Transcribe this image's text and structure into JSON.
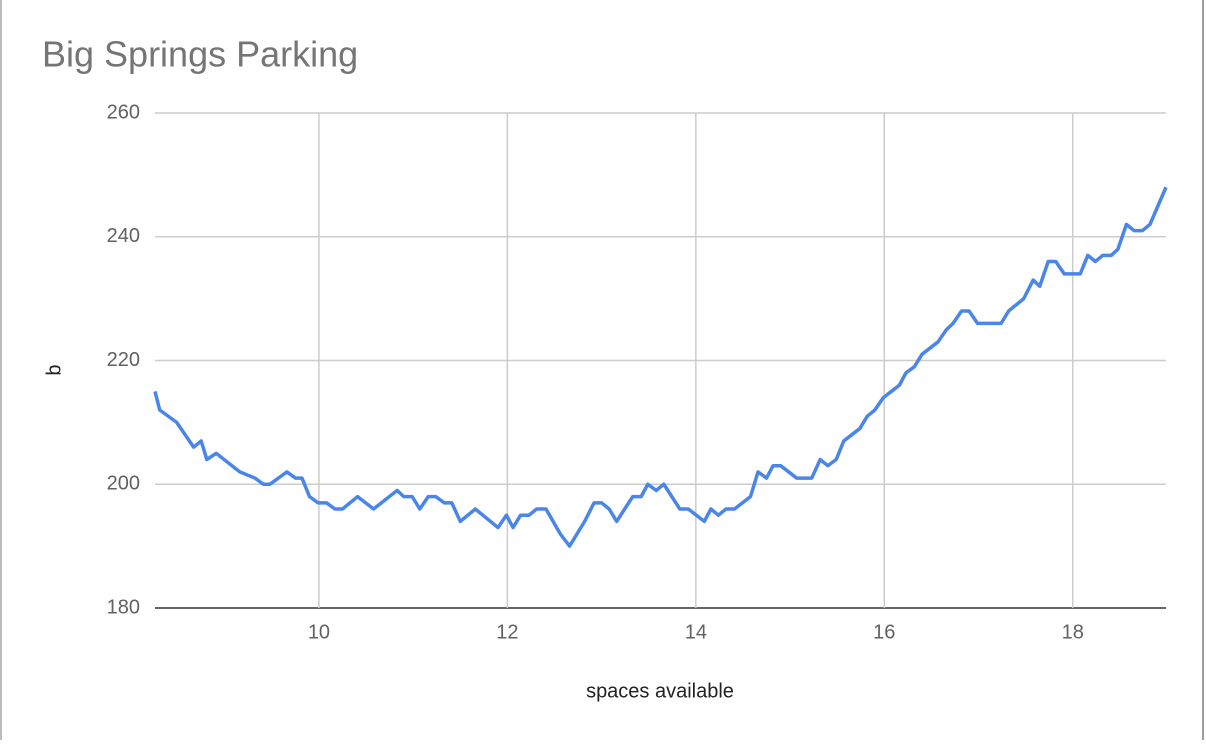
{
  "chart_data": {
    "type": "line",
    "title": "Big Springs Parking",
    "x_label": "spaces available",
    "y_label": "b",
    "x": [
      8.26,
      8.31,
      8.49,
      8.67,
      8.75,
      8.81,
      8.91,
      9.16,
      9.32,
      9.41,
      9.48,
      9.66,
      9.75,
      9.82,
      9.9,
      9.99,
      10.08,
      10.17,
      10.25,
      10.41,
      10.58,
      10.83,
      10.9,
      10.99,
      11.07,
      11.16,
      11.24,
      11.33,
      11.41,
      11.5,
      11.66,
      11.9,
      11.99,
      12.06,
      12.14,
      12.23,
      12.31,
      12.41,
      12.56,
      12.66,
      12.82,
      12.92,
      13.0,
      13.08,
      13.16,
      13.33,
      13.42,
      13.49,
      13.58,
      13.66,
      13.83,
      13.92,
      14.09,
      14.16,
      14.24,
      14.32,
      14.41,
      14.58,
      14.66,
      14.75,
      14.82,
      14.9,
      15.07,
      15.23,
      15.32,
      15.4,
      15.49,
      15.57,
      15.74,
      15.82,
      15.9,
      15.99,
      16.16,
      16.23,
      16.32,
      16.4,
      16.57,
      16.66,
      16.73,
      16.82,
      16.9,
      16.99,
      17.07,
      17.24,
      17.32,
      17.48,
      17.58,
      17.65,
      17.74,
      17.82,
      17.91,
      18.08,
      18.16,
      18.24,
      18.32,
      18.41,
      18.48,
      18.57,
      18.65,
      18.74,
      18.82,
      18.99
    ],
    "series": [
      {
        "name": "b",
        "color": "#4a86e8",
        "values": [
          215,
          212,
          210,
          206,
          207,
          204,
          205,
          202,
          201,
          200,
          200,
          202,
          201,
          201,
          198,
          197,
          197,
          196,
          196,
          198,
          196,
          199,
          198,
          198,
          196,
          198,
          198,
          197,
          197,
          194,
          196,
          193,
          195,
          193,
          195,
          195,
          196,
          196,
          192,
          190,
          194,
          197,
          197,
          196,
          194,
          198,
          198,
          200,
          199,
          200,
          196,
          196,
          194,
          196,
          195,
          196,
          196,
          198,
          202,
          201,
          203,
          203,
          201,
          201,
          204,
          203,
          204,
          207,
          209,
          211,
          212,
          214,
          216,
          218,
          219,
          221,
          223,
          225,
          226,
          228,
          228,
          226,
          226,
          226,
          228,
          230,
          233,
          232,
          236,
          236,
          234,
          234,
          237,
          236,
          237,
          237,
          238,
          242,
          241,
          241,
          242,
          248
        ]
      }
    ],
    "xlim": [
      8.26,
      18.99
    ],
    "xticks": [
      10,
      12,
      14,
      16,
      18
    ],
    "ylim": [
      180,
      260
    ],
    "yticks": [
      180,
      200,
      220,
      240,
      260
    ],
    "grid": true
  }
}
